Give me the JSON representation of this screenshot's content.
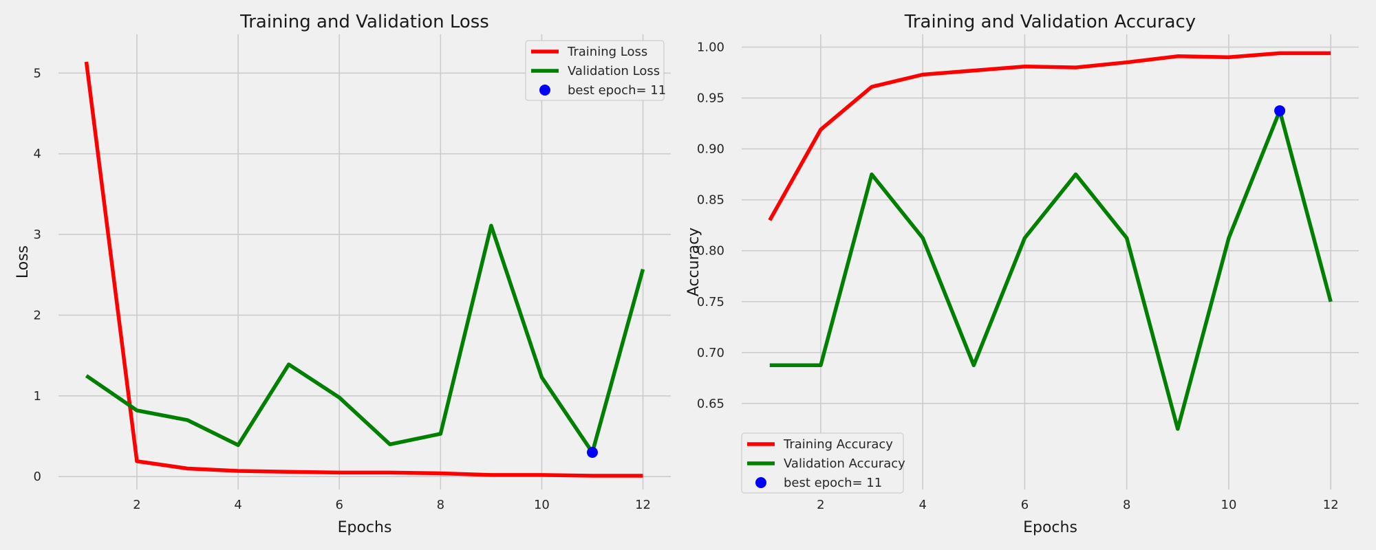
{
  "chart_data": [
    {
      "type": "line",
      "title": "Training and Validation Loss",
      "xlabel": "Epochs",
      "ylabel": "Loss",
      "xlim": [
        0.45,
        12.55
      ],
      "ylim": [
        -0.16,
        5.48
      ],
      "xticks": [
        2,
        4,
        6,
        8,
        10,
        12
      ],
      "yticks": [
        0,
        1,
        2,
        3,
        4,
        5
      ],
      "x": [
        1,
        2,
        3,
        4,
        5,
        6,
        7,
        8,
        9,
        10,
        11,
        12
      ],
      "series": [
        {
          "name": "Training Loss",
          "color": "#ff0000",
          "values": [
            5.14,
            0.19,
            0.1,
            0.07,
            0.06,
            0.05,
            0.05,
            0.04,
            0.02,
            0.02,
            0.01,
            0.01
          ]
        },
        {
          "name": "Validation Loss",
          "color": "#008000",
          "values": [
            1.25,
            0.82,
            0.7,
            0.39,
            1.39,
            0.98,
            0.4,
            0.53,
            3.11,
            1.23,
            0.3,
            2.57
          ]
        }
      ],
      "best_point": {
        "label": "best epoch= 11",
        "x": 11,
        "y": 0.3,
        "color": "#0000ff"
      },
      "grid": true,
      "legend_position": "top-right"
    },
    {
      "type": "line",
      "title": "Training and Validation Accuracy",
      "xlabel": "Epochs",
      "ylabel": "Accuracy",
      "xlim": [
        0.45,
        12.55
      ],
      "ylim": [
        0.5655,
        1.0125
      ],
      "xticks": [
        2,
        4,
        6,
        8,
        10,
        12
      ],
      "yticks": [
        "0.65",
        "0.70",
        "0.75",
        "0.80",
        "0.85",
        "0.90",
        "0.95",
        "1.00"
      ],
      "x": [
        1,
        2,
        3,
        4,
        5,
        6,
        7,
        8,
        9,
        10,
        11,
        12
      ],
      "series": [
        {
          "name": "Training Accuracy",
          "color": "#ff0000",
          "values": [
            0.83,
            0.919,
            0.961,
            0.973,
            0.977,
            0.981,
            0.98,
            0.985,
            0.991,
            0.99,
            0.994,
            0.994
          ]
        },
        {
          "name": "Validation Accuracy",
          "color": "#008000",
          "values": [
            0.6875,
            0.6875,
            0.875,
            0.8125,
            0.6875,
            0.8125,
            0.875,
            0.8125,
            0.625,
            0.8125,
            0.9375,
            0.75
          ]
        }
      ],
      "best_point": {
        "label": "best epoch= 11",
        "x": 11,
        "y": 0.9375,
        "color": "#0000ff"
      },
      "grid": true,
      "legend_position": "bottom-left"
    }
  ]
}
